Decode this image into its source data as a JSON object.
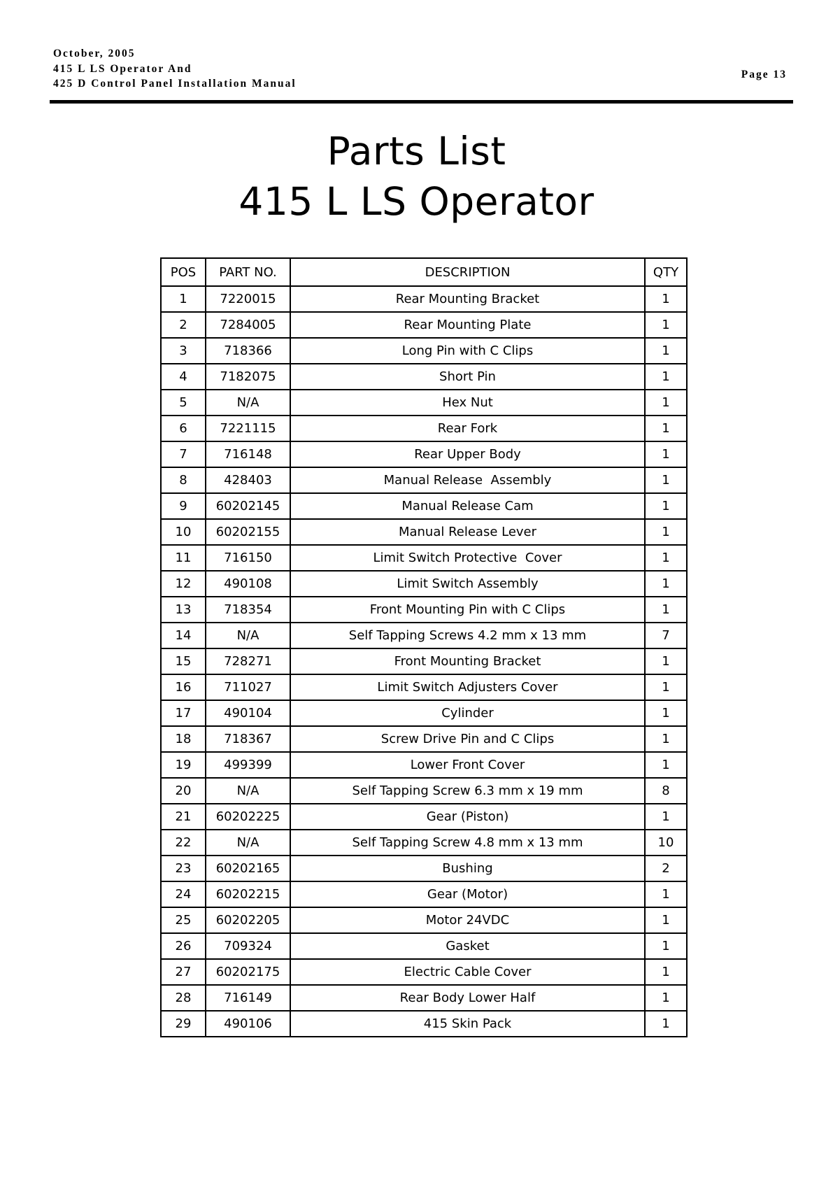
{
  "header": {
    "lines": [
      "October, 2005",
      "415 L LS Operator And",
      "425 D Control Panel Installation Manual"
    ],
    "page": "Page 13"
  },
  "title": {
    "line1": "Parts List",
    "line2": "415 L LS Operator"
  },
  "table": {
    "columns": [
      "POS",
      "PART NO.",
      "DESCRIPTION",
      "QTY"
    ],
    "rows": [
      [
        "1",
        "7220015",
        "Rear Mounting Bracket",
        "1"
      ],
      [
        "2",
        "7284005",
        "Rear Mounting Plate",
        "1"
      ],
      [
        "3",
        "718366",
        "Long Pin with C Clips",
        "1"
      ],
      [
        "4",
        "7182075",
        "Short Pin",
        "1"
      ],
      [
        "5",
        "N/A",
        "Hex Nut",
        "1"
      ],
      [
        "6",
        "7221115",
        "Rear Fork",
        "1"
      ],
      [
        "7",
        "716148",
        "Rear Upper Body",
        "1"
      ],
      [
        "8",
        "428403",
        "Manual Release  Assembly",
        "1"
      ],
      [
        "9",
        "60202145",
        "Manual Release Cam",
        "1"
      ],
      [
        "10",
        "60202155",
        "Manual Release Lever",
        "1"
      ],
      [
        "11",
        "716150",
        "Limit Switch Protective  Cover",
        "1"
      ],
      [
        "12",
        "490108",
        "Limit Switch Assembly",
        "1"
      ],
      [
        "13",
        "718354",
        "Front Mounting Pin with C Clips",
        "1"
      ],
      [
        "14",
        "N/A",
        "Self Tapping Screws 4.2 mm x 13 mm",
        "7"
      ],
      [
        "15",
        "728271",
        "Front Mounting Bracket",
        "1"
      ],
      [
        "16",
        "711027",
        "Limit Switch Adjusters Cover",
        "1"
      ],
      [
        "17",
        "490104",
        "Cylinder",
        "1"
      ],
      [
        "18",
        "718367",
        "Screw Drive Pin and C Clips",
        "1"
      ],
      [
        "19",
        "499399",
        "Lower Front Cover",
        "1"
      ],
      [
        "20",
        "N/A",
        "Self Tapping Screw 6.3 mm x 19 mm",
        "8"
      ],
      [
        "21",
        "60202225",
        "Gear (Piston)",
        "1"
      ],
      [
        "22",
        "N/A",
        "Self Tapping Screw 4.8 mm x 13 mm",
        "10"
      ],
      [
        "23",
        "60202165",
        "Bushing",
        "2"
      ],
      [
        "24",
        "60202215",
        "Gear (Motor)",
        "1"
      ],
      [
        "25",
        "60202205",
        "Motor 24VDC",
        "1"
      ],
      [
        "26",
        "709324",
        "Gasket",
        "1"
      ],
      [
        "27",
        "60202175",
        "Electric Cable Cover",
        "1"
      ],
      [
        "28",
        "716149",
        "Rear Body Lower Half",
        "1"
      ],
      [
        "29",
        "490106",
        "415 Skin Pack",
        "1"
      ]
    ]
  }
}
